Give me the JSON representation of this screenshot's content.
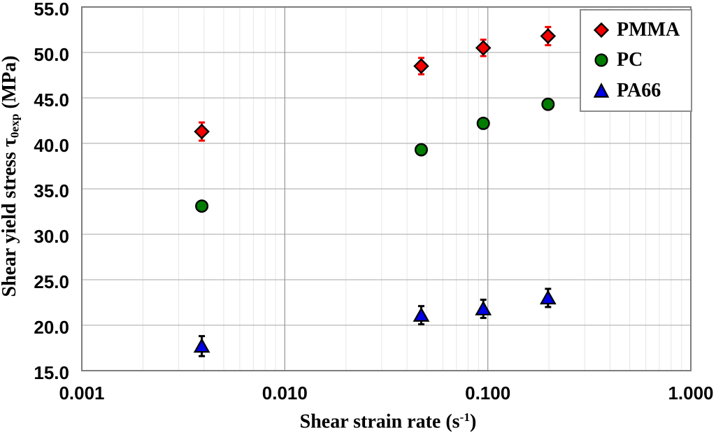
{
  "chart_data": {
    "type": "scatter",
    "title": "",
    "xlabel": {
      "main": "Shear strain rate (s",
      "sup": "-1",
      "end": ")"
    },
    "ylabel": {
      "main": "Shear yield stress τ",
      "sub": "0exp",
      "end": " (MPa)"
    },
    "x_scale": "log",
    "xlim": [
      0.001,
      1.0
    ],
    "ylim": [
      15.0,
      55.0
    ],
    "x_ticks": [
      {
        "value": 0.001,
        "label": "0.001"
      },
      {
        "value": 0.01,
        "label": "0.010"
      },
      {
        "value": 0.1,
        "label": "0.100"
      },
      {
        "value": 1.0,
        "label": "1.000"
      }
    ],
    "y_ticks": [
      {
        "value": 55,
        "label": "55.0"
      },
      {
        "value": 50,
        "label": "50.0"
      },
      {
        "value": 45,
        "label": "45.0"
      },
      {
        "value": 40,
        "label": "40.0"
      },
      {
        "value": 35,
        "label": "35.0"
      },
      {
        "value": 30,
        "label": "30.0"
      },
      {
        "value": 25,
        "label": "25.0"
      },
      {
        "value": 20,
        "label": "20.0"
      },
      {
        "value": 15,
        "label": "15.0"
      }
    ],
    "grid": {
      "major_horizontal": true,
      "major_vertical_decades": true,
      "minor_vertical_log": true,
      "minor_horizontal": false
    },
    "legend_position": "top-right",
    "series": [
      {
        "name": "PMMA",
        "marker": "diamond",
        "color": "#f40000",
        "edge_color": "#000000",
        "err_color": "#f40000",
        "x": [
          0.0039,
          0.047,
          0.095,
          0.198
        ],
        "y": [
          41.3,
          48.5,
          50.5,
          51.8
        ],
        "yerr": [
          1.0,
          0.9,
          0.9,
          1.0
        ]
      },
      {
        "name": "PC",
        "marker": "circle",
        "color": "#007d00",
        "edge_color": "#000000",
        "err_color": "#007d00",
        "x": [
          0.0039,
          0.047,
          0.095,
          0.198
        ],
        "y": [
          33.1,
          39.3,
          42.2,
          44.3
        ],
        "yerr": [
          0,
          0,
          0,
          0
        ]
      },
      {
        "name": "PA66",
        "marker": "triangle",
        "color": "#0000e8",
        "edge_color": "#000000",
        "err_color": "#000000",
        "x": [
          0.0039,
          0.047,
          0.095,
          0.198
        ],
        "y": [
          17.7,
          21.1,
          21.8,
          23.0
        ],
        "yerr": [
          1.1,
          1.0,
          1.0,
          1.0
        ]
      }
    ],
    "style_colors": {
      "plot_border": "#7d7d7d",
      "grid_major_h": "#b8b8b8",
      "grid_major_v": "#9c9c9c",
      "grid_minor_v": "#e6e6e6",
      "background": "#ffffff",
      "text": "#000000"
    }
  }
}
